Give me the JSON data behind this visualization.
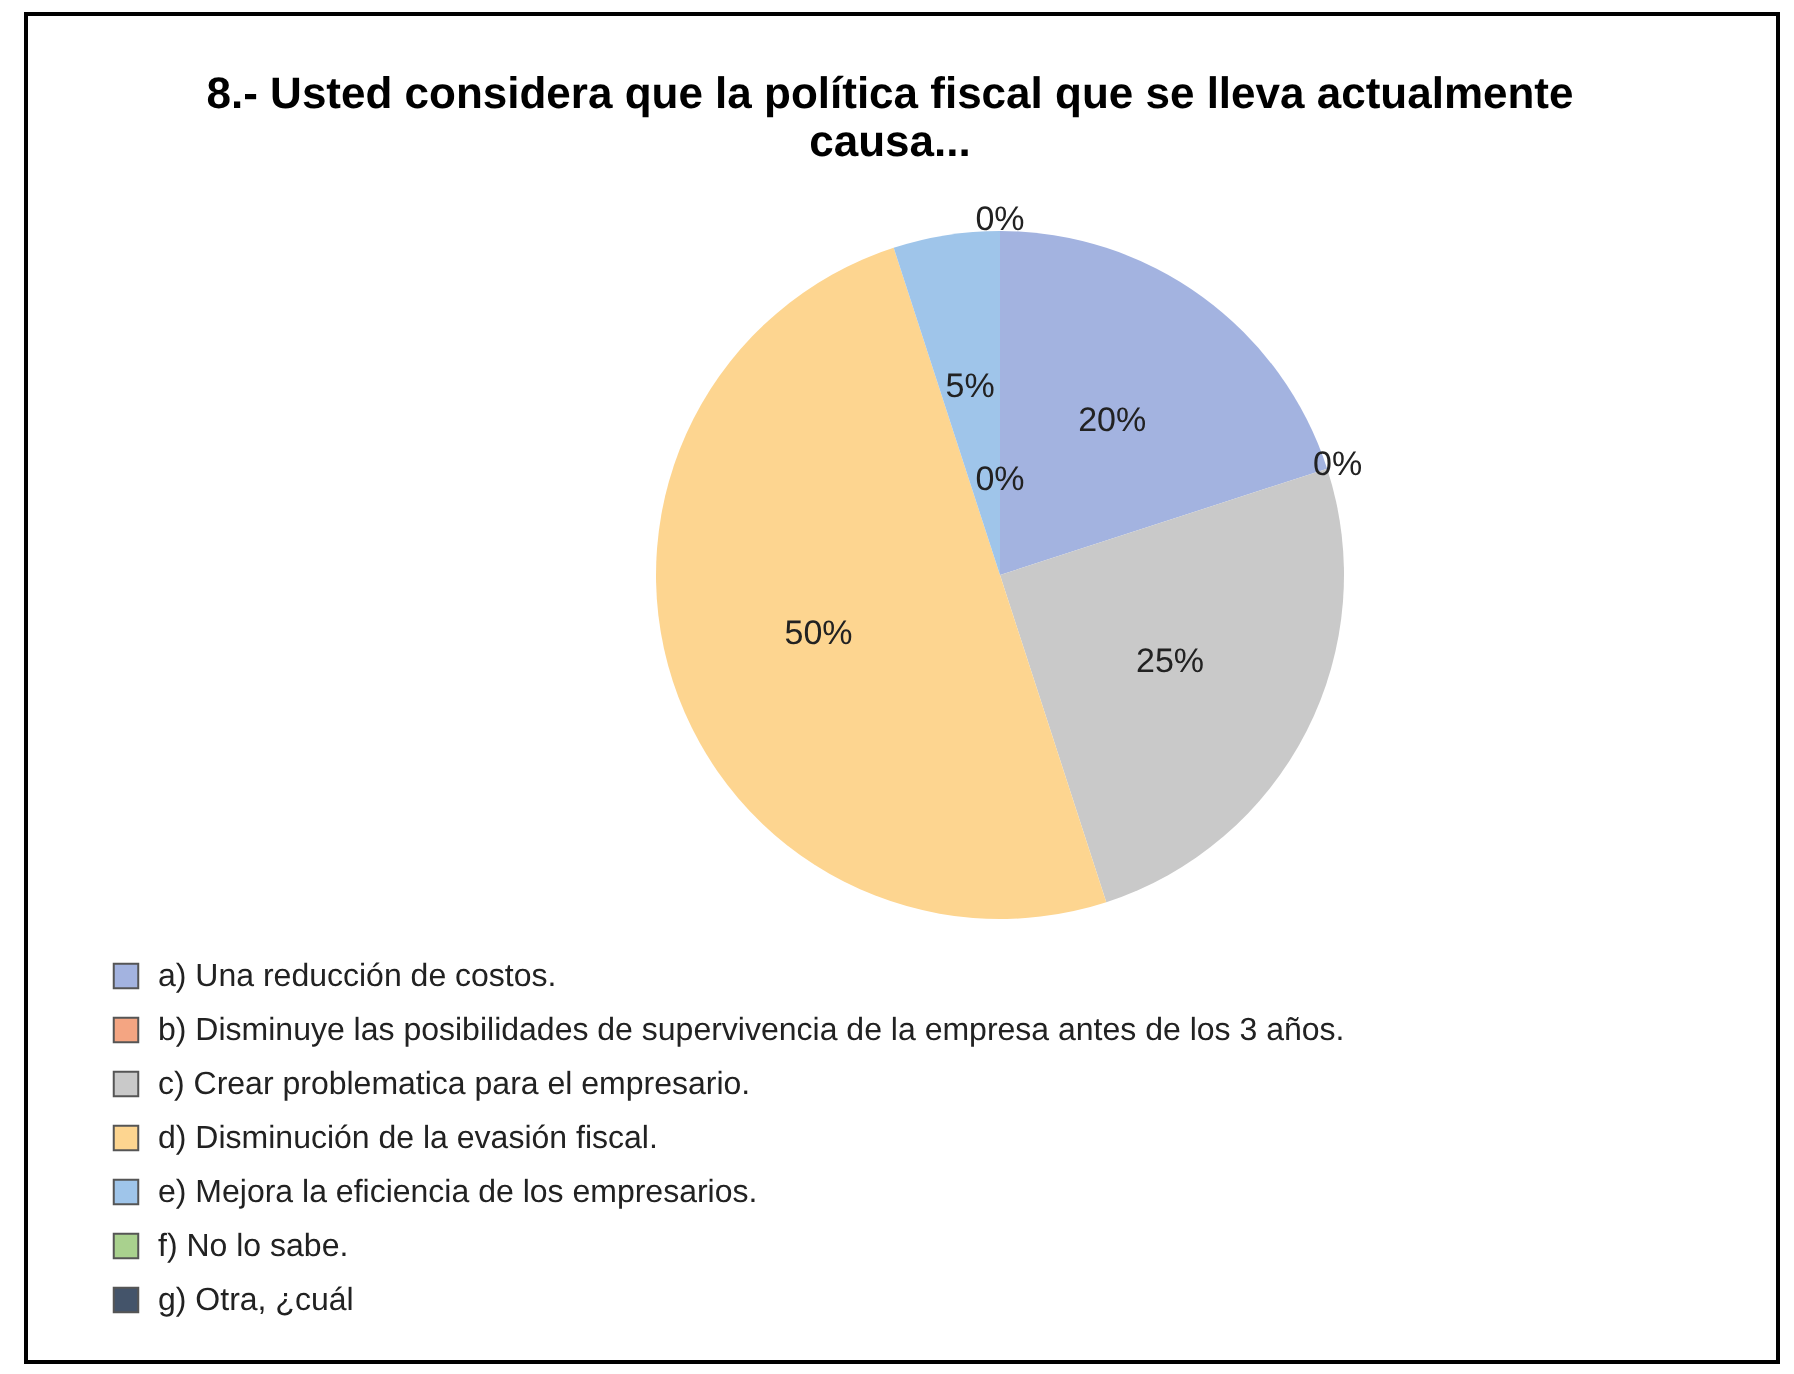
{
  "chart_data": {
    "type": "pie",
    "title": "8.- Usted considera  que la política fiscal que se lleva actualmente causa...",
    "categories": [
      "a)  Una reducción de costos.",
      "b)  Disminuye las posibilidades de supervivencia de la empresa antes de los 3 años.",
      "c)  Crear problematica para el empresario.",
      "d)  Disminución de la evasión fiscal.",
      "e)  Mejora la eficiencia de los empresarios.",
      "f)  No lo sabe.",
      "g)  Otra, ¿cuál"
    ],
    "values": [
      20,
      0,
      25,
      50,
      5,
      0,
      0
    ],
    "value_labels": [
      "20%",
      "0%",
      "25%",
      "50%",
      "5%",
      "0%",
      "0%"
    ],
    "colors": [
      "#a3b3e0",
      "#f4a582",
      "#c9c9c9",
      "#fdd590",
      "#9fc5ea",
      "#a9d18e",
      "#44546a"
    ],
    "legend": "bottom left"
  }
}
